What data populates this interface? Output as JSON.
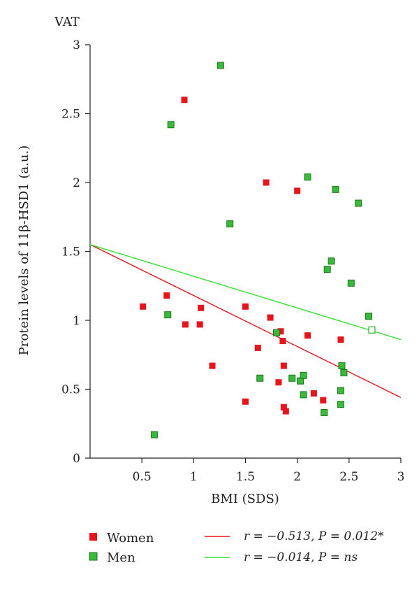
{
  "chart_data": {
    "type": "scatter",
    "title": "VAT",
    "xlabel": "BMI (SDS)",
    "ylabel": "Protein levels of 11β-HSD1 (a.u.)",
    "xlim": [
      0,
      3
    ],
    "ylim": [
      0,
      3
    ],
    "xticks": [
      0.5,
      1,
      1.5,
      2,
      2.5,
      3
    ],
    "xtick_labels": [
      "0.5",
      "1",
      "1.5",
      "2",
      "2.5",
      "3"
    ],
    "yticks": [
      0,
      0.5,
      1,
      1.5,
      2,
      2.5,
      3
    ],
    "ytick_labels": [
      "0",
      "0.5",
      "1",
      "1.5",
      "2",
      "2.5",
      "3"
    ],
    "grid": false,
    "legend_position": "bottom",
    "series": [
      {
        "name": "Women",
        "color": "#e8141c",
        "marker": "square",
        "points": [
          [
            0.51,
            1.1
          ],
          [
            0.74,
            1.18
          ],
          [
            0.91,
            2.6
          ],
          [
            0.92,
            0.97
          ],
          [
            1.06,
            0.97
          ],
          [
            1.07,
            1.09
          ],
          [
            1.18,
            0.67
          ],
          [
            1.5,
            1.1
          ],
          [
            1.5,
            0.41
          ],
          [
            1.62,
            0.8
          ],
          [
            1.7,
            2.0
          ],
          [
            1.74,
            1.02
          ],
          [
            1.82,
            0.55
          ],
          [
            1.84,
            0.92
          ],
          [
            1.86,
            0.85
          ],
          [
            1.87,
            0.67
          ],
          [
            1.87,
            0.37
          ],
          [
            1.89,
            0.34
          ],
          [
            2.0,
            1.94
          ],
          [
            2.1,
            0.89
          ],
          [
            2.16,
            0.47
          ],
          [
            2.25,
            0.42
          ],
          [
            2.42,
            0.86
          ]
        ],
        "fit": {
          "x": [
            0,
            3
          ],
          "y": [
            1.55,
            0.44
          ],
          "color": "#e8141c",
          "label": "r = −0.513, P = 0.012*"
        }
      },
      {
        "name": "Men",
        "color": "#3cb83c",
        "marker": "square",
        "points": [
          [
            0.62,
            0.17
          ],
          [
            0.75,
            1.04
          ],
          [
            0.78,
            2.42
          ],
          [
            1.26,
            2.85
          ],
          [
            1.35,
            1.7
          ],
          [
            1.64,
            0.58
          ],
          [
            1.8,
            0.91
          ],
          [
            1.95,
            0.58
          ],
          [
            2.03,
            0.56
          ],
          [
            2.06,
            0.6
          ],
          [
            2.06,
            0.46
          ],
          [
            2.1,
            2.04
          ],
          [
            2.26,
            0.33
          ],
          [
            2.29,
            1.37
          ],
          [
            2.33,
            1.43
          ],
          [
            2.37,
            1.95
          ],
          [
            2.42,
            0.49
          ],
          [
            2.42,
            0.39
          ],
          [
            2.43,
            0.67
          ],
          [
            2.45,
            0.62
          ],
          [
            2.52,
            1.27
          ],
          [
            2.59,
            1.85
          ],
          [
            2.69,
            1.03
          ]
        ],
        "open_points": [
          [
            2.72,
            0.93
          ]
        ],
        "fit": {
          "x": [
            0,
            3
          ],
          "y": [
            1.55,
            0.86
          ],
          "color": "#33e033",
          "label": "r = −0.014, P = ns"
        }
      }
    ]
  }
}
